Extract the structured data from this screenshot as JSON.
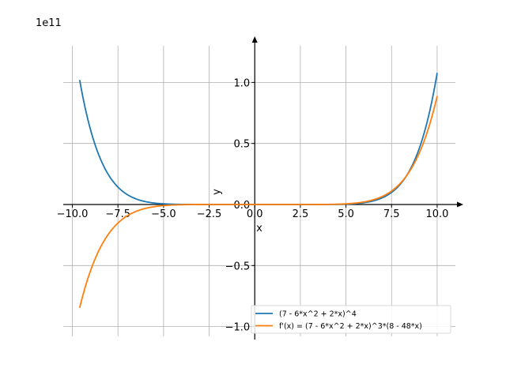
{
  "chart_data": {
    "type": "line",
    "xlabel": "x",
    "ylabel": "y",
    "offset_label": "1e11",
    "xlim": [
      -10.5,
      11
    ],
    "ylim": [
      -1.08,
      1.3
    ],
    "grid": true,
    "legend_position": "lower-right",
    "x_ticks": [
      -10.0,
      -7.5,
      -5.0,
      -2.5,
      0.0,
      2.5,
      5.0,
      7.5,
      10.0
    ],
    "x_tick_labels": [
      "−10.0",
      "−7.5",
      "−5.0",
      "−2.5",
      "0.0",
      "2.5",
      "5.0",
      "7.5",
      "10.0"
    ],
    "y_ticks": [
      -1.0,
      -0.5,
      0.0,
      0.5,
      1.0
    ],
    "y_tick_labels": [
      "−1.0",
      "−0.5",
      "0.0",
      "0.5",
      "1.0"
    ],
    "series": [
      {
        "name": "(7 - 6*x^2 + 2*x)^4",
        "color": "#1f77b4",
        "expr": "f",
        "x_range": [
          -9.6,
          10
        ]
      },
      {
        "name": "f'(x) = (7 - 6*x^2 + 2*x)^3*(8 - 48*x)",
        "color": "#ff7f0e",
        "expr": "fprime",
        "x_range": [
          -9.6,
          10
        ]
      }
    ]
  }
}
